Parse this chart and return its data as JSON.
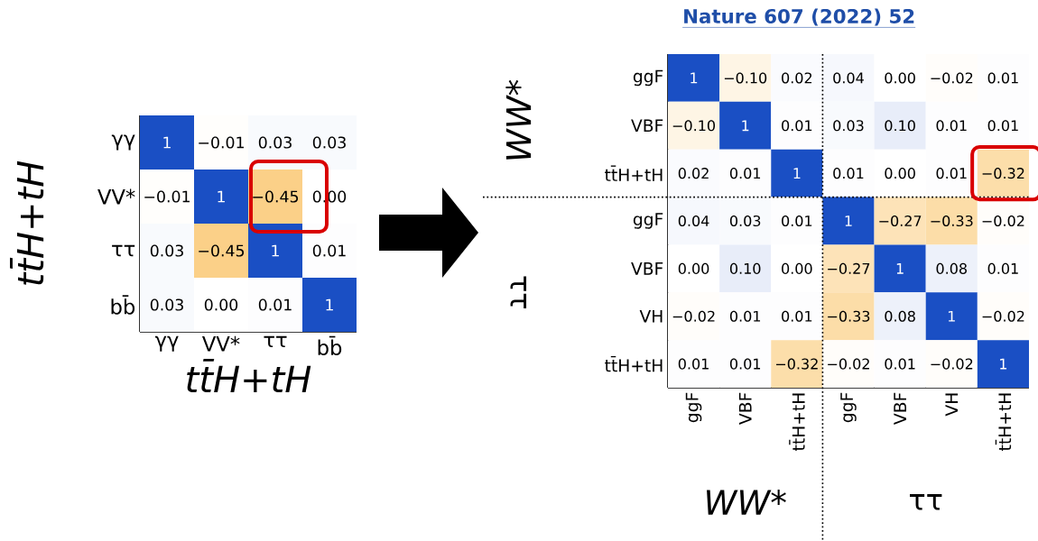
{
  "chart_data": [
    {
      "type": "heatmap",
      "xlabel": "tt̄H+tH",
      "ylabel": "tt̄H+tH",
      "categories": [
        "γγ",
        "VV*",
        "ττ",
        "bb̄"
      ],
      "y_categories": [
        "γγ",
        "VV*",
        "ττ",
        "bb̄"
      ],
      "cells": [
        [
          1,
          -0.01,
          0.03,
          0.03
        ],
        [
          -0.01,
          1,
          -0.45,
          0.0
        ],
        [
          0.03,
          -0.45,
          1,
          0.01
        ],
        [
          0.03,
          0.0,
          0.01,
          1
        ]
      ],
      "cell_labels": [
        [
          "1",
          "−0.01",
          "0.03",
          "0.03"
        ],
        [
          "−0.01",
          "1",
          "−0.45",
          "0.00"
        ],
        [
          "0.03",
          "−0.45",
          "1",
          "0.01"
        ],
        [
          "0.03",
          "0.00",
          "0.01",
          "1"
        ]
      ]
    },
    {
      "type": "heatmap",
      "categories": [
        "ggF",
        "VBF",
        "tt̄H+tH",
        "ggF",
        "VBF",
        "VH",
        "tt̄H+tH"
      ],
      "y_categories": [
        "ggF",
        "VBF",
        "tt̄H+tH",
        "ggF",
        "VBF",
        "VH",
        "tt̄H+tH"
      ],
      "cells": [
        [
          1,
          -0.1,
          0.02,
          0.04,
          0.0,
          -0.02,
          0.01
        ],
        [
          -0.1,
          1,
          0.01,
          0.03,
          0.1,
          0.01,
          0.01
        ],
        [
          0.02,
          0.01,
          1,
          0.01,
          0.0,
          0.01,
          -0.32
        ],
        [
          0.04,
          0.03,
          0.01,
          1,
          -0.27,
          -0.33,
          -0.02
        ],
        [
          0.0,
          0.1,
          0.0,
          -0.27,
          1,
          0.08,
          0.01
        ],
        [
          -0.02,
          0.01,
          0.01,
          -0.33,
          0.08,
          1,
          -0.02
        ],
        [
          0.01,
          0.01,
          -0.32,
          -0.02,
          0.01,
          -0.02,
          1
        ]
      ],
      "cell_labels": [
        [
          "1",
          "−0.10",
          "0.02",
          "0.04",
          "0.00",
          "−0.02",
          "0.01"
        ],
        [
          "−0.10",
          "1",
          "0.01",
          "0.03",
          "0.10",
          "0.01",
          "0.01"
        ],
        [
          "0.02",
          "0.01",
          "1",
          "0.01",
          "0.00",
          "0.01",
          "−0.32"
        ],
        [
          "0.04",
          "0.03",
          "0.01",
          "1",
          "−0.27",
          "−0.33",
          "−0.02"
        ],
        [
          "0.00",
          "0.10",
          "0.00",
          "−0.27",
          "1",
          "0.08",
          "0.01"
        ],
        [
          "−0.02",
          "0.01",
          "0.01",
          "−0.33",
          "0.08",
          "1",
          "−0.02"
        ],
        [
          "0.01",
          "0.01",
          "−0.32",
          "−0.02",
          "0.01",
          "−0.02",
          "1"
        ]
      ],
      "annotations": [
        "WW*",
        "ττ",
        "WW*",
        "ττ",
        "Nature 607 (2022) 52"
      ]
    }
  ]
}
